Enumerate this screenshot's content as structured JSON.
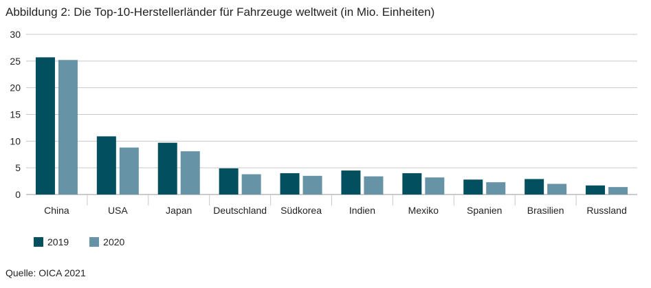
{
  "chart_data": {
    "type": "bar",
    "title": "Abbildung 2: Die Top-10-Herstellerländer für Fahrzeuge weltweit (in Mio. Einheiten)",
    "categories": [
      "China",
      "USA",
      "Japan",
      "Deutschland",
      "Südkorea",
      "Indien",
      "Mexiko",
      "Spanien",
      "Brasilien",
      "Russland"
    ],
    "series": [
      {
        "name": "2019",
        "color": "#02505f",
        "values": [
          25.7,
          10.9,
          9.7,
          4.9,
          4.0,
          4.5,
          4.0,
          2.8,
          2.9,
          1.7
        ]
      },
      {
        "name": "2020",
        "color": "#6694a6",
        "values": [
          25.2,
          8.8,
          8.1,
          3.8,
          3.5,
          3.4,
          3.2,
          2.3,
          2.0,
          1.4
        ]
      }
    ],
    "ylim": [
      0,
      30
    ],
    "yticks": [
      0,
      5,
      10,
      15,
      20,
      25,
      30
    ],
    "grid": true,
    "legend": "bottom-left",
    "source": "Quelle: OICA 2021"
  }
}
